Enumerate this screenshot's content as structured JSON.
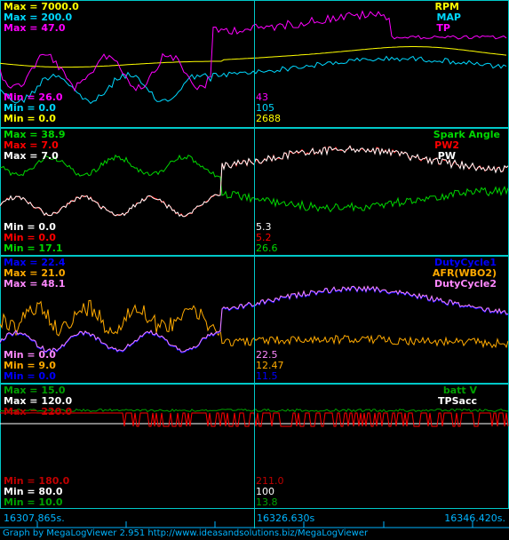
{
  "colors": {
    "rpm": "#ffff00",
    "map": "#00d8ff",
    "tp": "#ff00ff",
    "spark_angle": "#00d800",
    "pw2": "#ff0000",
    "pw": "#ffffff",
    "dutycycle1": "#0000ff",
    "afr": "#ffaa00",
    "dutycycle2": "#ff88ff",
    "battv": "#00a000",
    "tpsacc": "#ffffff",
    "cursor": "#00c8c8",
    "time_text": "#00b4ff"
  },
  "panels": [
    {
      "maxes": [
        {
          "text": "Max = 7000.0",
          "color": "#ffff00"
        },
        {
          "text": "Max = 200.0",
          "color": "#00d8ff"
        },
        {
          "text": "Max = 47.0",
          "color": "#ff00ff"
        }
      ],
      "mins": [
        {
          "text": "Min = 26.0",
          "color": "#ff00ff"
        },
        {
          "text": "Min = 0.0",
          "color": "#00d8ff"
        },
        {
          "text": "Min = 0.0",
          "color": "#ffff00"
        }
      ],
      "legend": [
        {
          "text": "RPM",
          "color": "#ffff00"
        },
        {
          "text": "MAP",
          "color": "#00d8ff"
        },
        {
          "text": "TP",
          "color": "#ff00ff"
        }
      ],
      "cursor_values": [
        {
          "text": "43",
          "color": "#ff00ff"
        },
        {
          "text": "105",
          "color": "#00d8ff"
        },
        {
          "text": "2688",
          "color": "#ffff00"
        }
      ]
    },
    {
      "maxes": [
        {
          "text": "Max = 38.9",
          "color": "#00d800"
        },
        {
          "text": "Max = 7.0",
          "color": "#ff0000"
        },
        {
          "text": "Max = 7.0",
          "color": "#ffffff"
        }
      ],
      "mins": [
        {
          "text": "Min = 0.0",
          "color": "#ffffff"
        },
        {
          "text": "Min = 0.0",
          "color": "#ff0000"
        },
        {
          "text": "Min = 17.1",
          "color": "#00d800"
        }
      ],
      "legend": [
        {
          "text": "Spark Angle",
          "color": "#00d800"
        },
        {
          "text": "PW2",
          "color": "#ff0000"
        },
        {
          "text": "PW",
          "color": "#ffffff"
        }
      ],
      "cursor_values": [
        {
          "text": "5.3",
          "color": "#ffffff"
        },
        {
          "text": "5.2",
          "color": "#ff0000"
        },
        {
          "text": "26.6",
          "color": "#00d800"
        }
      ]
    },
    {
      "maxes": [
        {
          "text": "Max = 22.4",
          "color": "#0000ff"
        },
        {
          "text": "Max = 21.0",
          "color": "#ffaa00"
        },
        {
          "text": "Max = 48.1",
          "color": "#ff88ff"
        }
      ],
      "mins": [
        {
          "text": "Min = 0.0",
          "color": "#ff88ff"
        },
        {
          "text": "Min = 9.0",
          "color": "#ffaa00"
        },
        {
          "text": "Min = 0.0",
          "color": "#0000ff"
        }
      ],
      "legend": [
        {
          "text": "DutyCycle1",
          "color": "#0000ff"
        },
        {
          "text": "AFR(WBO2)",
          "color": "#ffaa00"
        },
        {
          "text": "DutyCycle2",
          "color": "#ff88ff"
        }
      ],
      "cursor_values": [
        {
          "text": "22.5",
          "color": "#ff88ff"
        },
        {
          "text": "12.47",
          "color": "#ffaa00"
        },
        {
          "text": "11.5",
          "color": "#0000ff"
        }
      ]
    },
    {
      "maxes": [
        {
          "text": "Max = 15.0",
          "color": "#00a000"
        },
        {
          "text": "Max = 120.0",
          "color": "#ffffff"
        },
        {
          "text": "Max = 220.0",
          "color": "#c00000"
        }
      ],
      "mins": [
        {
          "text": "Min = 180.0",
          "color": "#c00000"
        },
        {
          "text": "Min = 80.0",
          "color": "#ffffff"
        },
        {
          "text": "Min = 10.0",
          "color": "#00a000"
        }
      ],
      "legend": [
        {
          "text": "batt V",
          "color": "#00a000"
        },
        {
          "text": "TPSacc",
          "color": "#ffffff"
        }
      ],
      "cursor_values": [
        {
          "text": "211.0",
          "color": "#c00000"
        },
        {
          "text": "100",
          "color": "#ffffff"
        },
        {
          "text": "13.8",
          "color": "#00a000"
        }
      ]
    }
  ],
  "timeline": {
    "start": "16307.865s.",
    "cursor": "16326.630s",
    "end": "16346.420s."
  },
  "footer": "Graph by MegaLogViewer 2.951 http://www.ideasandsolutions.biz/MegaLogViewer"
}
